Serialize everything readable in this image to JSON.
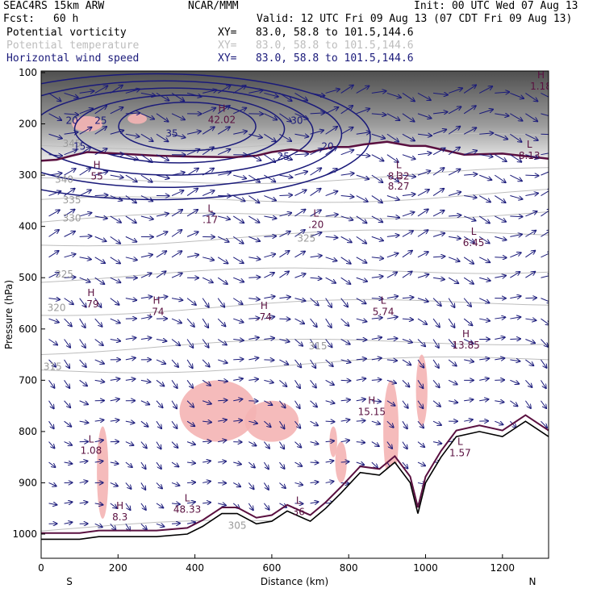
{
  "header": {
    "model": "SEAC4RS 15km ARW",
    "org": "NCAR/MMM",
    "init": "Init: 00 UTC Wed 07 Aug 13",
    "fcst_label": "Fcst:",
    "fcst_value": "60 h",
    "valid": "Valid: 12 UTC Fri 09 Aug 13 (07 CDT Fri 09 Aug 13)"
  },
  "legend": [
    {
      "name": "Potential vorticity",
      "xy": "XY=   83.0, 58.8 to 101.5,144.6",
      "color": "#000000"
    },
    {
      "name": "Potential temperature",
      "xy": "XY=   83.0, 58.8 to 101.5,144.6",
      "color": "#bdbdbd"
    },
    {
      "name": "Horizontal wind speed",
      "xy": "XY=   83.0, 58.8 to 101.5,144.6",
      "color": "#1a1a7a"
    }
  ],
  "colors": {
    "pv_fill": "#f4b4b4",
    "pv_line": "#5a1040",
    "theta_line": "#bdbdbd",
    "wind_line": "#1a1a7a",
    "terrain_line": "#000000",
    "high_pv_shade": "#404040"
  },
  "chart_data": {
    "type": "cross-section",
    "xlabel": "Distance (km)",
    "ylabel": "Pressure (hPa)",
    "xlim": [
      0,
      1320
    ],
    "ylim": [
      1050,
      100
    ],
    "x_ticks": [
      0,
      200,
      400,
      600,
      800,
      1000,
      1200
    ],
    "y_ticks": [
      100,
      200,
      300,
      400,
      500,
      600,
      700,
      800,
      900,
      1000
    ],
    "x_tick_labels": [
      "0",
      "200",
      "400",
      "600",
      "800",
      "1000",
      "1200"
    ],
    "y_tick_labels": [
      "100",
      "200",
      "300",
      "400",
      "500",
      "600",
      "700",
      "800",
      "900",
      "1000"
    ],
    "endpoints": {
      "left": "S",
      "right": "N"
    },
    "tropopause_pressure": [
      {
        "x": 0,
        "p": 272
      },
      {
        "x": 40,
        "p": 270
      },
      {
        "x": 80,
        "p": 262
      },
      {
        "x": 120,
        "p": 255
      },
      {
        "x": 200,
        "p": 258
      },
      {
        "x": 300,
        "p": 262
      },
      {
        "x": 400,
        "p": 264
      },
      {
        "x": 500,
        "p": 265
      },
      {
        "x": 560,
        "p": 262
      },
      {
        "x": 600,
        "p": 255
      },
      {
        "x": 650,
        "p": 250
      },
      {
        "x": 700,
        "p": 255
      },
      {
        "x": 760,
        "p": 245
      },
      {
        "x": 800,
        "p": 245
      },
      {
        "x": 840,
        "p": 240
      },
      {
        "x": 900,
        "p": 235
      },
      {
        "x": 960,
        "p": 243
      },
      {
        "x": 1000,
        "p": 243
      },
      {
        "x": 1100,
        "p": 260
      },
      {
        "x": 1200,
        "p": 258
      },
      {
        "x": 1320,
        "p": 268
      }
    ],
    "terrain_pressure": [
      {
        "x": 0,
        "p": 1010
      },
      {
        "x": 50,
        "p": 1010
      },
      {
        "x": 100,
        "p": 1010
      },
      {
        "x": 150,
        "p": 1005
      },
      {
        "x": 200,
        "p": 1005
      },
      {
        "x": 300,
        "p": 1005
      },
      {
        "x": 380,
        "p": 1000
      },
      {
        "x": 420,
        "p": 985
      },
      {
        "x": 470,
        "p": 960
      },
      {
        "x": 510,
        "p": 960
      },
      {
        "x": 560,
        "p": 980
      },
      {
        "x": 600,
        "p": 975
      },
      {
        "x": 640,
        "p": 955
      },
      {
        "x": 700,
        "p": 975
      },
      {
        "x": 740,
        "p": 950
      },
      {
        "x": 780,
        "p": 920
      },
      {
        "x": 830,
        "p": 880
      },
      {
        "x": 880,
        "p": 885
      },
      {
        "x": 920,
        "p": 860
      },
      {
        "x": 960,
        "p": 900
      },
      {
        "x": 980,
        "p": 960
      },
      {
        "x": 1000,
        "p": 900
      },
      {
        "x": 1040,
        "p": 850
      },
      {
        "x": 1080,
        "p": 810
      },
      {
        "x": 1140,
        "p": 800
      },
      {
        "x": 1200,
        "p": 810
      },
      {
        "x": 1260,
        "p": 780
      },
      {
        "x": 1320,
        "p": 810
      }
    ],
    "theta_contour_labels": [
      {
        "value": "315",
        "x": 30,
        "p": 680
      },
      {
        "value": "320",
        "x": 40,
        "p": 565
      },
      {
        "value": "325",
        "x": 60,
        "p": 500
      },
      {
        "value": "330",
        "x": 80,
        "p": 390
      },
      {
        "value": "335",
        "x": 80,
        "p": 355
      },
      {
        "value": "340",
        "x": 60,
        "p": 315
      },
      {
        "value": "345",
        "x": 80,
        "p": 245
      },
      {
        "value": "325",
        "x": 690,
        "p": 430
      },
      {
        "value": "315",
        "x": 720,
        "p": 640
      },
      {
        "value": "305",
        "x": 510,
        "p": 990
      }
    ],
    "wind_speed_contours": [
      {
        "value": 15,
        "label": "15"
      },
      {
        "value": 20,
        "label": "20"
      },
      {
        "value": 25,
        "label": "25"
      },
      {
        "value": 30,
        "label": "30"
      },
      {
        "value": 35,
        "label": "35"
      }
    ],
    "wind_label_positions": [
      {
        "label": "20",
        "x": 80,
        "p": 200
      },
      {
        "label": "25",
        "x": 155,
        "p": 200
      },
      {
        "label": "35",
        "x": 340,
        "p": 225
      },
      {
        "label": "30",
        "x": 665,
        "p": 200
      },
      {
        "label": "25",
        "x": 630,
        "p": 270
      },
      {
        "label": "20",
        "x": 745,
        "p": 250
      },
      {
        "label": "15",
        "x": 100,
        "p": 250
      }
    ],
    "extrema_labels": [
      {
        "kind": "H",
        "value": "42.02",
        "x": 470,
        "p": 195
      },
      {
        "kind": "H",
        "value": "55",
        "x": 145,
        "p": 305
      },
      {
        "kind": "L",
        "value": ".17",
        "x": 440,
        "p": 390
      },
      {
        "kind": "L",
        "value": ".20",
        "x": 715,
        "p": 400
      },
      {
        "kind": "L",
        "value": "8.32",
        "x": 930,
        "p": 305
      },
      {
        "kind": "L",
        "value": "8.27",
        "x": 930,
        "p": 325
      },
      {
        "kind": "L",
        "value": "6.45",
        "x": 1125,
        "p": 435
      },
      {
        "kind": "H",
        "value": ".79",
        "x": 130,
        "p": 555
      },
      {
        "kind": "H",
        "value": ".74",
        "x": 300,
        "p": 570
      },
      {
        "kind": "H",
        "value": ".74",
        "x": 580,
        "p": 580
      },
      {
        "kind": "L",
        "value": "5.74",
        "x": 890,
        "p": 570
      },
      {
        "kind": "H",
        "value": "13.85",
        "x": 1105,
        "p": 635
      },
      {
        "kind": "H",
        "value": "15.15",
        "x": 860,
        "p": 765
      },
      {
        "kind": "L",
        "value": "1.08",
        "x": 130,
        "p": 840
      },
      {
        "kind": "L",
        "value": "48.33",
        "x": 380,
        "p": 955
      },
      {
        "kind": "H",
        "value": "8.3",
        "x": 205,
        "p": 970
      },
      {
        "kind": "L",
        "value": "1.57",
        "x": 1090,
        "p": 845
      },
      {
        "kind": "H",
        "value": "1.18",
        "x": 1300,
        "p": 130
      },
      {
        "kind": "L",
        "value": "8.13",
        "x": 1270,
        "p": 265
      },
      {
        "kind": "L",
        "value": "36",
        "x": 670,
        "p": 960
      }
    ]
  }
}
